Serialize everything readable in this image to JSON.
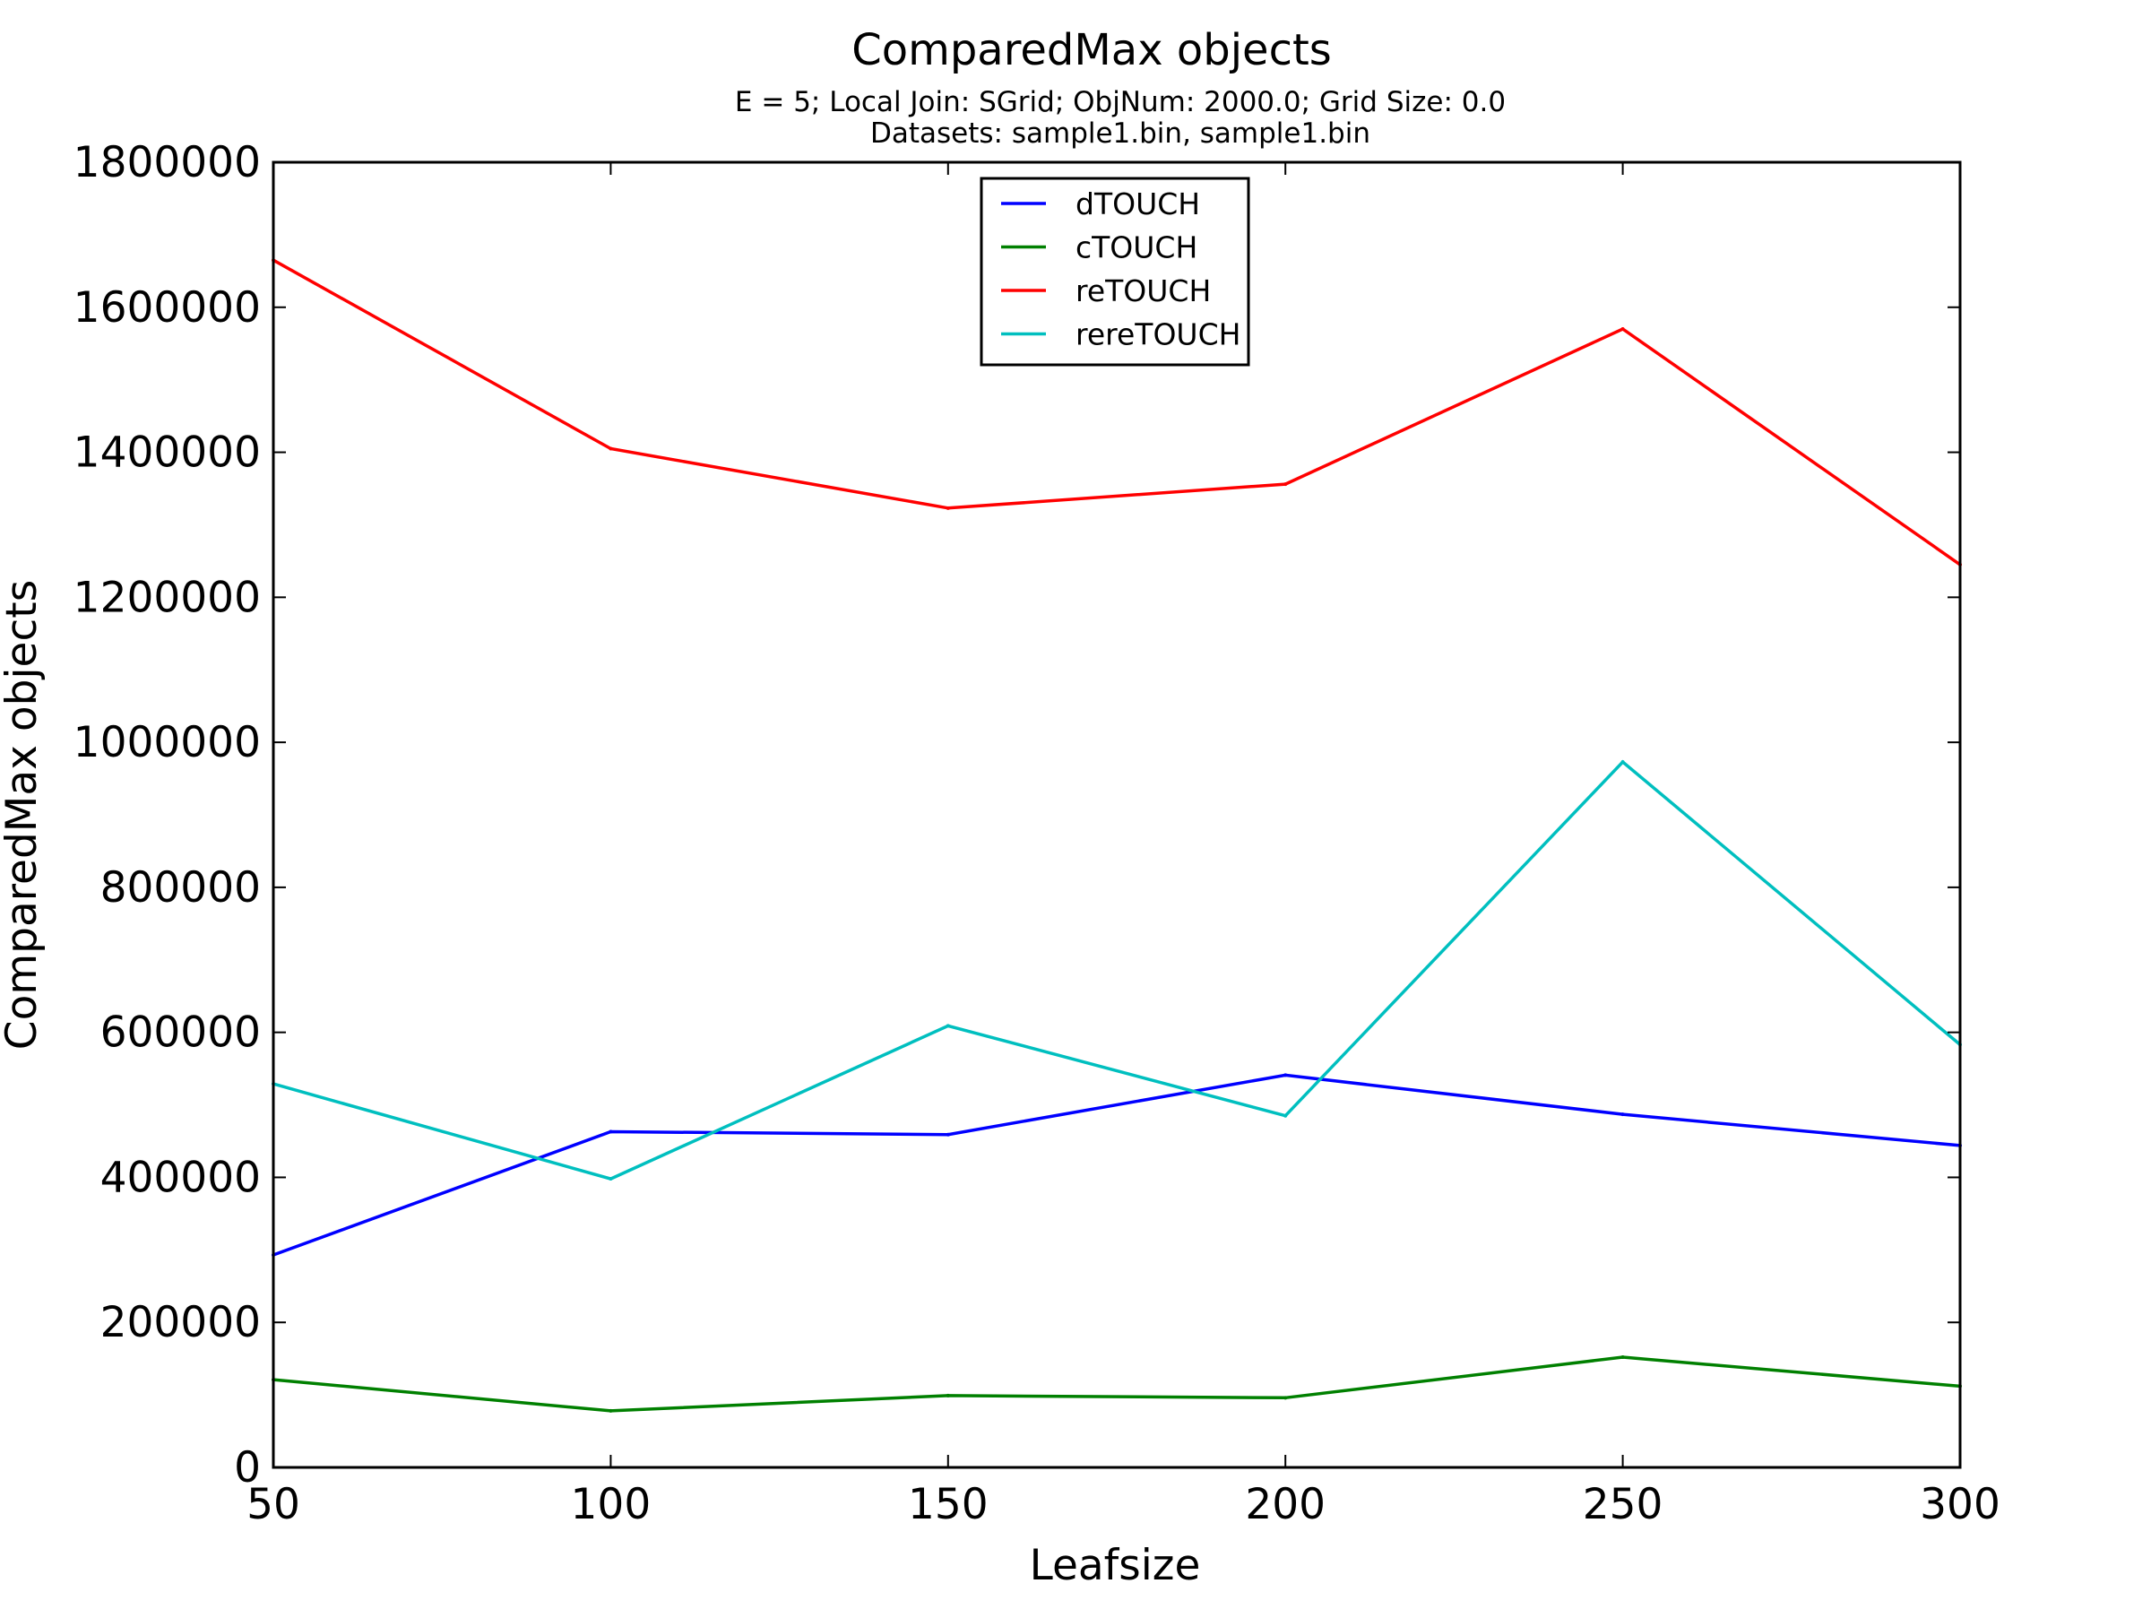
{
  "chart_data": {
    "type": "line",
    "title": "ComparedMax objects",
    "subtitle_lines": [
      "E = 5; Local Join: SGrid; ObjNum: 2000.0; Grid Size: 0.0",
      "Datasets: sample1.bin, sample1.bin"
    ],
    "xlabel": "Leafsize",
    "ylabel": "ComparedMax objects",
    "x": [
      50,
      100,
      150,
      200,
      250,
      300
    ],
    "xlim": [
      50,
      300
    ],
    "ylim": [
      0,
      1800000
    ],
    "x_ticks": [
      "50",
      "100",
      "150",
      "200",
      "250",
      "300"
    ],
    "y_ticks": [
      "0",
      "200000",
      "400000",
      "600000",
      "800000",
      "1000000",
      "1200000",
      "1400000",
      "1600000",
      "1800000"
    ],
    "grid": false,
    "legend_position": "top-center",
    "series": [
      {
        "name": "dTOUCH",
        "color": "#0000ff",
        "values": [
          293000,
          463000,
          459000,
          541000,
          487000,
          444000
        ]
      },
      {
        "name": "cTOUCH",
        "color": "#008000",
        "values": [
          121000,
          78000,
          99000,
          96000,
          152000,
          112000
        ]
      },
      {
        "name": "reTOUCH",
        "color": "#ff0000",
        "values": [
          1665000,
          1405000,
          1323000,
          1356000,
          1570000,
          1245000
        ]
      },
      {
        "name": "rereTOUCH",
        "color": "#00bfbf",
        "values": [
          529000,
          398000,
          609000,
          485000,
          973000,
          583000
        ]
      }
    ]
  }
}
